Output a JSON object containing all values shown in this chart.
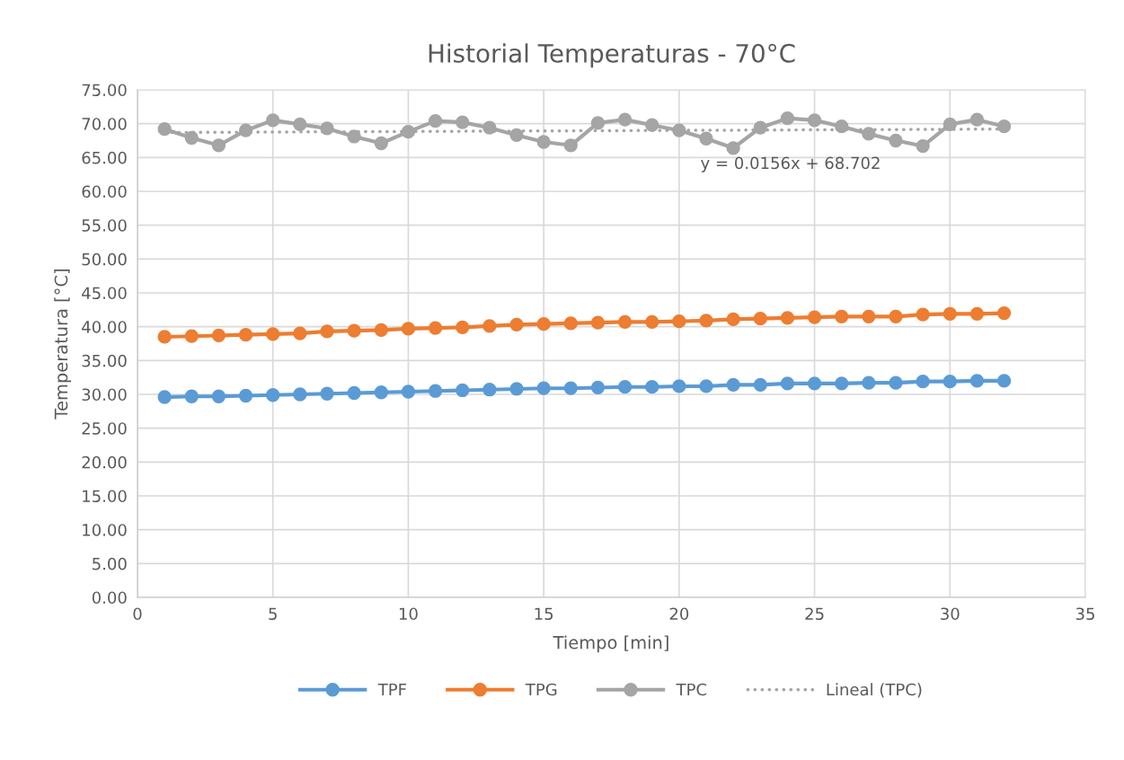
{
  "chart_data": {
    "type": "line",
    "title": "Historial Temperaturas - 70°C",
    "xlabel": "Tiempo [min]",
    "ylabel": "Temperatura [°C]",
    "x": [
      1,
      2,
      3,
      4,
      5,
      6,
      7,
      8,
      9,
      10,
      11,
      12,
      13,
      14,
      15,
      16,
      17,
      18,
      19,
      20,
      21,
      22,
      23,
      24,
      25,
      26,
      27,
      28,
      29,
      30,
      31,
      32
    ],
    "series": [
      {
        "name": "TPF",
        "color": "#5b9bd5",
        "marker": "circle",
        "values": [
          29.6,
          29.7,
          29.7,
          29.8,
          29.9,
          30.0,
          30.1,
          30.2,
          30.3,
          30.4,
          30.5,
          30.6,
          30.7,
          30.8,
          30.9,
          30.9,
          31.0,
          31.1,
          31.1,
          31.2,
          31.2,
          31.4,
          31.4,
          31.6,
          31.6,
          31.6,
          31.7,
          31.7,
          31.9,
          31.9,
          32.0,
          32.0
        ]
      },
      {
        "name": "TPG",
        "color": "#ed7d31",
        "marker": "circle",
        "values": [
          38.5,
          38.6,
          38.7,
          38.8,
          38.9,
          39.0,
          39.3,
          39.4,
          39.5,
          39.7,
          39.8,
          39.9,
          40.1,
          40.3,
          40.4,
          40.5,
          40.6,
          40.7,
          40.7,
          40.8,
          40.9,
          41.1,
          41.2,
          41.3,
          41.4,
          41.5,
          41.5,
          41.5,
          41.8,
          41.9,
          41.9,
          42.0
        ]
      },
      {
        "name": "TPC",
        "color": "#a5a5a5",
        "marker": "circle",
        "values": [
          69.2,
          67.9,
          66.8,
          69.0,
          70.5,
          69.9,
          69.3,
          68.1,
          67.1,
          68.8,
          70.4,
          70.2,
          69.4,
          68.3,
          67.3,
          66.8,
          70.1,
          70.6,
          69.8,
          69.0,
          67.8,
          66.4,
          69.4,
          70.8,
          70.5,
          69.6,
          68.5,
          67.5,
          66.7,
          69.9,
          70.6,
          69.6
        ]
      },
      {
        "name": "Lineal (TPC)",
        "type": "line",
        "color": "#a5a5a5",
        "marker": "none",
        "line_style": "dotted",
        "x": [
          1,
          32
        ],
        "values": [
          68.7,
          69.2
        ]
      }
    ],
    "annotations": [
      "y = 0.0156x + 68.702"
    ],
    "xlim": [
      0,
      35
    ],
    "xticks": [
      0,
      5,
      10,
      15,
      20,
      25,
      30,
      35
    ],
    "ylim": [
      0,
      75
    ],
    "yticks": [
      {
        "value": 0,
        "label": "0.00"
      },
      {
        "value": 5,
        "label": "5.00"
      },
      {
        "value": 10,
        "label": "10.00"
      },
      {
        "value": 15,
        "label": "15.00"
      },
      {
        "value": 20,
        "label": "20.00"
      },
      {
        "value": 25,
        "label": "25.00"
      },
      {
        "value": 30,
        "label": "30.00"
      },
      {
        "value": 35,
        "label": "35.00"
      },
      {
        "value": 40,
        "label": "40.00"
      },
      {
        "value": 45,
        "label": "45.00"
      },
      {
        "value": 50,
        "label": "50.00"
      },
      {
        "value": 55,
        "label": "55.00"
      },
      {
        "value": 60,
        "label": "60.00"
      },
      {
        "value": 65,
        "label": "65.00"
      },
      {
        "value": 70,
        "label": "70.00"
      },
      {
        "value": 75,
        "label": "75.00"
      }
    ],
    "grid": true,
    "legend": "bottom"
  }
}
